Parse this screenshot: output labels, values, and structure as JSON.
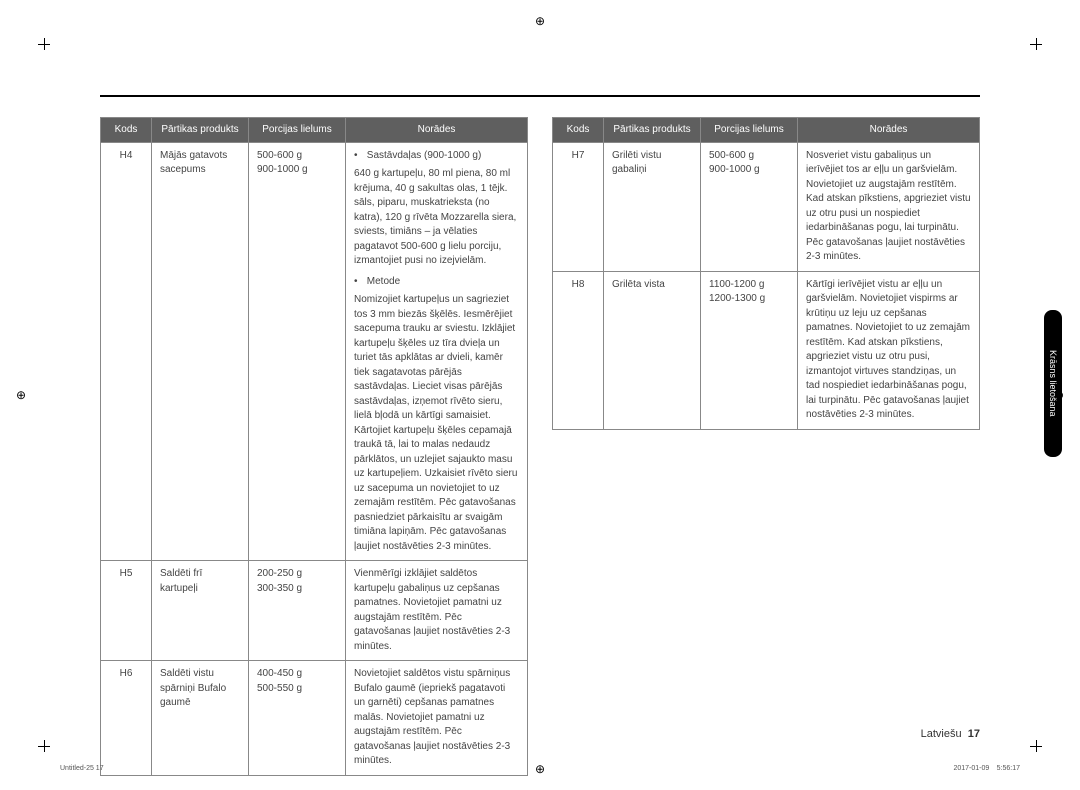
{
  "section_tab": "Krāsns lietošana",
  "footer_lang": "Latviešu",
  "footer_page": "17",
  "footmark_left": "Untitled-25   17",
  "footmark_right": "2017-01-09     5:56:17",
  "headers": {
    "code": "Kods",
    "product": "Pārtikas produkts",
    "portion": "Porcijas lielums",
    "notes": "Norādes"
  },
  "left_rows": [
    {
      "code": "H4",
      "product": "Mājās gatavots\nsacepums",
      "portion": "500-600 g\n900-1000 g",
      "note_intro_label": "Sastāvdaļas (900-1000 g)",
      "note_intro_body": "640 g kartupeļu, 80 ml piena, 80 ml krējuma, 40 g sakultas olas, 1 tējk. sāls, piparu, muskatrieksta (no katra), 120 g rīvēta Mozzarella siera, sviests, timiāns – ja vēlaties pagatavot 500-600 g lielu porciju, izmantojiet pusi no izejvielām.",
      "note_method_label": "Metode",
      "note_method_body": "Nomizojiet kartupeļus un sagrieziet tos 3 mm biezās šķēlēs. Iesmērējiet sacepuma trauku ar sviestu. Izklājiet kartupeļu šķēles uz tīra dvieļa un turiet tās apklātas ar dvieli, kamēr tiek sagatavotas pārējās sastāvdaļas. Lieciet visas pārējās sastāvdaļas, izņemot rīvēto sieru, lielā bļodā un kārtīgi samaisiet. Kārtojiet kartupeļu šķēles cepamajā traukā tā, lai to malas nedaudz pārklātos, un uzlejiet sajaukto masu uz kartupeļiem. Uzkaisiet rīvēto sieru uz sacepuma un novietojiet to uz zemajām restītēm. Pēc gatavošanas pasniedziet pārkaisītu ar svaigām timiāna lapiņām. Pēc gatavošanas ļaujiet nostāvēties 2-3 minūtes."
    },
    {
      "code": "H5",
      "product": "Saldēti frī\nkartupeļi",
      "portion": "200-250 g\n300-350 g",
      "note_plain": "Vienmērīgi izklājiet saldētos kartupeļu gabaliņus uz cepšanas pamatnes. Novietojiet pamatni uz augstajām restītēm. Pēc gatavošanas ļaujiet nostāvēties 2-3 minūtes."
    },
    {
      "code": "H6",
      "product": "Saldēti vistu\nspārniņi Bufalo\ngaumē",
      "portion": "400-450 g\n500-550 g",
      "note_plain": "Novietojiet saldētos vistu spārniņus Bufalo gaumē (iepriekš pagatavoti un garnēti) cepšanas pamatnes malās. Novietojiet pamatni uz augstajām restītēm. Pēc gatavošanas ļaujiet nostāvēties 2-3 minūtes."
    }
  ],
  "right_rows": [
    {
      "code": "H7",
      "product": "Grilēti vistu\ngabaliņi",
      "portion": "500-600 g\n900-1000 g",
      "note_plain": "Nosveriet vistu gabaliņus un ierīvējiet tos ar eļļu un garšvielām. Novietojiet uz augstajām restītēm. Kad atskan pīkstiens, apgrieziet vistu uz otru pusi un nospiediet iedarbināšanas pogu, lai turpinātu. Pēc gatavošanas ļaujiet nostāvēties 2-3 minūtes."
    },
    {
      "code": "H8",
      "product": "Grilēta vista",
      "portion": "1100-1200 g\n1200-1300 g",
      "note_plain": "Kārtīgi ierīvējiet vistu ar eļļu un garšvielām. Novietojiet vispirms ar krūtiņu uz leju uz cepšanas pamatnes. Novietojiet to uz zemajām restītēm. Kad atskan pīkstiens, apgrieziet vistu uz otru pusi, izmantojot virtuves standziņas, un tad nospiediet iedarbināšanas pogu, lai turpinātu. Pēc gatavošanas ļaujiet nostāvēties 2-3 minūtes."
    }
  ]
}
